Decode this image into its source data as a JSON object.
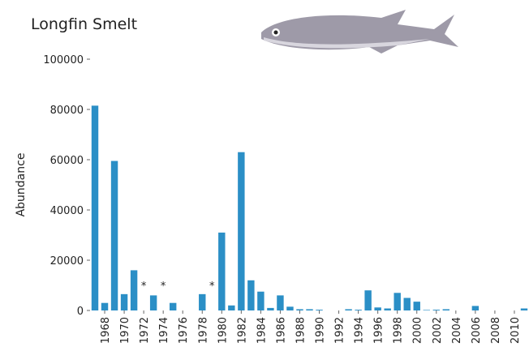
{
  "chart_data": {
    "type": "bar",
    "title": "Longfin Smelt",
    "y_label": "Abundance",
    "color": "#2b8fc6",
    "x": [
      1967,
      1968,
      1969,
      1970,
      1971,
      1972,
      1973,
      1974,
      1975,
      1976,
      1977,
      1978,
      1979,
      1980,
      1981,
      1982,
      1983,
      1984,
      1985,
      1986,
      1987,
      1988,
      1989,
      1990,
      1991,
      1992,
      1993,
      1994,
      1995,
      1996,
      1997,
      1998,
      1999,
      2000,
      2001,
      2002,
      2003,
      2004,
      2005,
      2006,
      2007,
      2008,
      2009,
      2010,
      2011
    ],
    "values": [
      81500,
      3000,
      59500,
      6500,
      16000,
      null,
      6000,
      null,
      3000,
      0,
      0,
      6500,
      null,
      31000,
      2000,
      63000,
      12000,
      7500,
      1000,
      6000,
      1500,
      500,
      500,
      300,
      0,
      0,
      500,
      300,
      8000,
      1200,
      800,
      7000,
      5000,
      3500,
      200,
      300,
      500,
      0,
      0,
      1800,
      0,
      0,
      0,
      0,
      800
    ],
    "xlim": [
      1966.5,
      2011.5
    ],
    "xticks": [
      1968,
      1970,
      1972,
      1974,
      1976,
      1978,
      1980,
      1982,
      1984,
      1986,
      1988,
      1990,
      1992,
      1994,
      1996,
      1998,
      2000,
      2002,
      2004,
      2006,
      2008,
      2010
    ],
    "ylim": [
      0,
      100000
    ],
    "yticks": [
      0,
      20000,
      40000,
      60000,
      80000,
      100000
    ],
    "annotations": [
      {
        "x": 1972,
        "text": "*"
      },
      {
        "x": 1974,
        "text": "*"
      },
      {
        "x": 1979,
        "text": "*"
      }
    ]
  }
}
